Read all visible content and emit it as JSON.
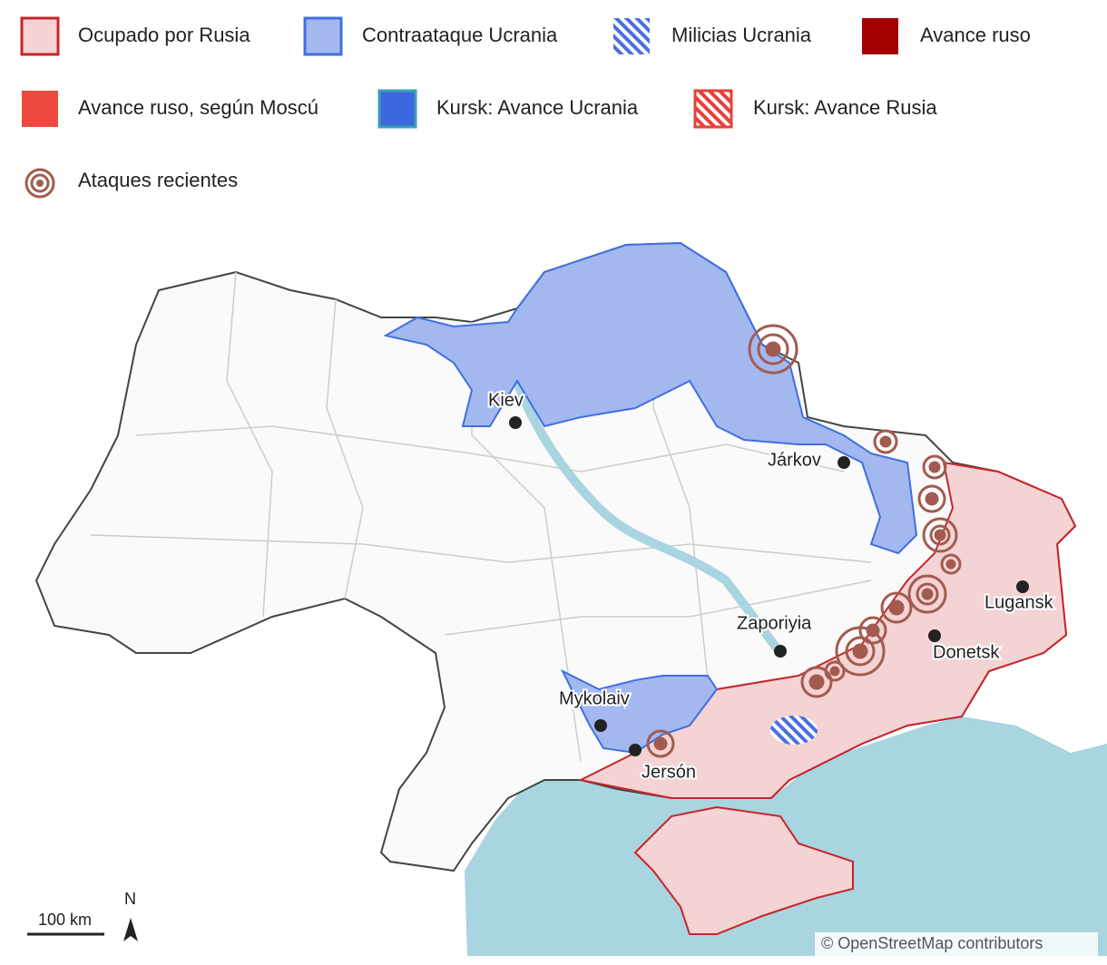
{
  "legend": [
    {
      "label": "Ocupado por Rusia"
    },
    {
      "label": "Contraataque Ucrania"
    },
    {
      "label": "Milicias Ucrania"
    },
    {
      "label": "Avance ruso"
    },
    {
      "label": "Avance ruso, según Moscú"
    },
    {
      "label": "Kursk: Avance Ucrania"
    },
    {
      "label": "Kursk: Avance Rusia"
    },
    {
      "label": "Ataques recientes"
    }
  ],
  "cities": [
    {
      "label": "Kiev"
    },
    {
      "label": "Járkov"
    },
    {
      "label": "Lugansk"
    },
    {
      "label": "Donetsk"
    },
    {
      "label": "Zaporiyia"
    },
    {
      "label": "Mykolaiv"
    },
    {
      "label": "Jersón"
    }
  ],
  "scale": {
    "label": "100 km"
  },
  "north": "N",
  "attribution": "© OpenStreetMap contributors"
}
